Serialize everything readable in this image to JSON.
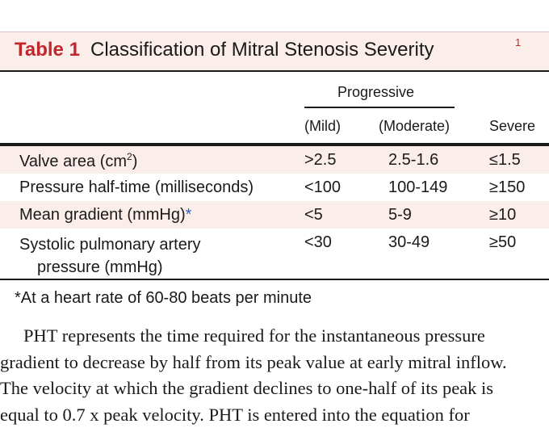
{
  "table": {
    "label": "Table 1",
    "title": "Classification of Mitral Stenosis Severity",
    "ref": "1",
    "group_header": "Progressive",
    "col_mild": "(Mild)",
    "col_moderate": "(Moderate)",
    "col_severe": "Severe",
    "rows": [
      {
        "param": "Valve area (cm",
        "param_sup": "2",
        "param_end": ")",
        "mild": ">2.5",
        "moderate": "2.5-1.6",
        "severe": "≤1.5"
      },
      {
        "param": "Pressure half-time (milliseconds)",
        "mild": "<100",
        "moderate": "100-149",
        "severe": "≥150"
      },
      {
        "param": "Mean gradient (mmHg)",
        "param_mark": "*",
        "mild": "<5",
        "moderate": "5-9",
        "severe": "≥10"
      },
      {
        "param": "Systolic pulmonary artery",
        "param_line2": "pressure (mmHg)",
        "mild": "<30",
        "moderate": "30-49",
        "severe": "≥50"
      }
    ],
    "footnote": "*At a heart rate of 60-80 beats per minute"
  },
  "body": {
    "lines": [
      "PHT represents the time required for the instantaneous pressure",
      "gradient to decrease by half from its peak value at early mitral inflow.",
      "The velocity at which the gradient declines to one-half of its peak is",
      "equal to 0.7 x peak velocity. PHT is entered into the equation for"
    ]
  }
}
